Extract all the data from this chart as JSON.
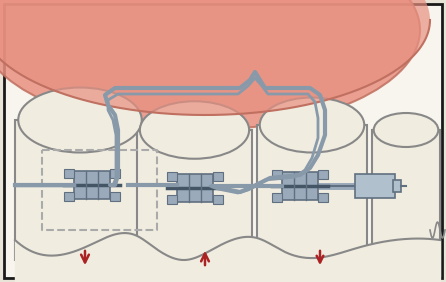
{
  "bg": "#f8f5ee",
  "border": "#1a1a1a",
  "gum_fill": "#e89080",
  "gum_edge": "#c07060",
  "tooth_fill": "#f0ece0",
  "tooth_edge": "#888888",
  "bracket_main": "#9aaabb",
  "bracket_dark": "#607080",
  "bracket_slot": "#445566",
  "wire_col": "#889aaa",
  "wire_lw": 2.0,
  "dash_col": "#aaaaaa",
  "arrow_col": "#aa2222",
  "spring_fill": "#b0c0cc",
  "fig_bg": "#e8e4d8"
}
